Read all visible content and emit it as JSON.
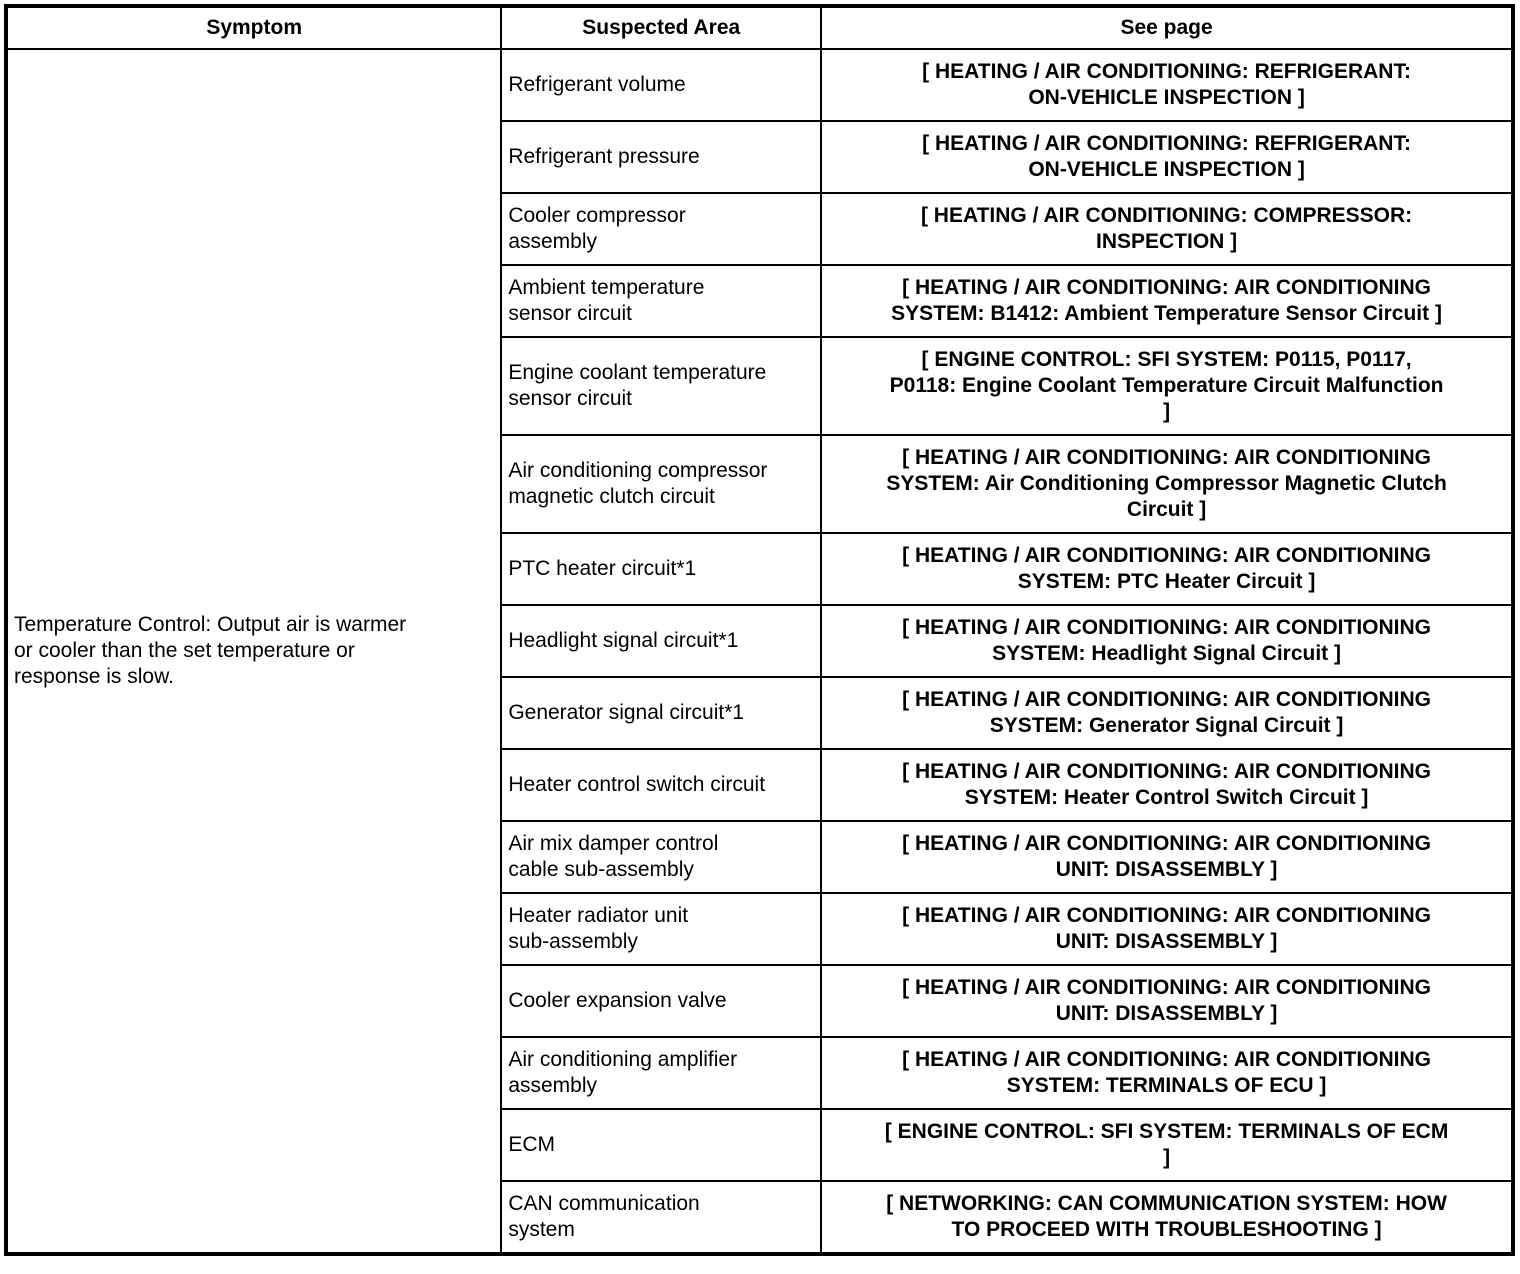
{
  "colors": {
    "text": "#000000",
    "background": "#ffffff",
    "border": "#000000"
  },
  "table": {
    "headers": {
      "symptom": "Symptom",
      "suspected_area": "Suspected Area",
      "see_page": "See page"
    },
    "symptom": "Temperature Control: Output air is warmer\nor cooler than the set temperature or\nresponse is slow.",
    "rows": [
      {
        "area": "Refrigerant volume",
        "page": "[ HEATING / AIR CONDITIONING: REFRIGERANT:\nON-VEHICLE INSPECTION ]"
      },
      {
        "area": "Refrigerant pressure",
        "page": "[ HEATING / AIR CONDITIONING: REFRIGERANT:\nON-VEHICLE INSPECTION ]"
      },
      {
        "area": "Cooler compressor\nassembly",
        "page": "[ HEATING / AIR CONDITIONING: COMPRESSOR:\nINSPECTION ]"
      },
      {
        "area": "Ambient temperature\nsensor circuit",
        "page": "[ HEATING / AIR CONDITIONING: AIR CONDITIONING\nSYSTEM: B1412: Ambient Temperature Sensor Circuit ]"
      },
      {
        "area": "Engine coolant temperature\nsensor circuit",
        "page": "[ ENGINE CONTROL: SFI SYSTEM: P0115, P0117,\nP0118: Engine Coolant Temperature Circuit Malfunction\n]"
      },
      {
        "area": "Air conditioning compressor\nmagnetic clutch circuit",
        "page": "[ HEATING / AIR CONDITIONING: AIR CONDITIONING\nSYSTEM: Air Conditioning Compressor Magnetic Clutch\nCircuit ]"
      },
      {
        "area": "PTC heater circuit*1",
        "page": "[ HEATING / AIR CONDITIONING: AIR CONDITIONING\nSYSTEM: PTC Heater Circuit ]"
      },
      {
        "area": "Headlight signal circuit*1",
        "page": "[ HEATING / AIR CONDITIONING: AIR CONDITIONING\nSYSTEM: Headlight Signal Circuit ]"
      },
      {
        "area": "Generator signal circuit*1",
        "page": "[ HEATING / AIR CONDITIONING: AIR CONDITIONING\nSYSTEM: Generator Signal Circuit ]"
      },
      {
        "area": "Heater control switch circuit",
        "page": "[ HEATING / AIR CONDITIONING: AIR CONDITIONING\nSYSTEM: Heater Control Switch Circuit ]"
      },
      {
        "area": "Air mix damper control\ncable sub-assembly",
        "page": "[ HEATING / AIR CONDITIONING: AIR CONDITIONING\nUNIT: DISASSEMBLY ]"
      },
      {
        "area": "Heater radiator unit\nsub-assembly",
        "page": "[ HEATING / AIR CONDITIONING: AIR CONDITIONING\nUNIT: DISASSEMBLY ]"
      },
      {
        "area": "Cooler expansion valve",
        "page": "[ HEATING / AIR CONDITIONING: AIR CONDITIONING\nUNIT: DISASSEMBLY ]"
      },
      {
        "area": "Air conditioning amplifier\nassembly",
        "page": "[ HEATING / AIR CONDITIONING: AIR CONDITIONING\nSYSTEM: TERMINALS OF ECU ]"
      },
      {
        "area": "ECM",
        "page": "[ ENGINE CONTROL: SFI SYSTEM: TERMINALS OF ECM\n]"
      },
      {
        "area": "CAN communication\nsystem",
        "page": "[ NETWORKING: CAN COMMUNICATION SYSTEM: HOW\nTO PROCEED WITH TROUBLESHOOTING ]"
      }
    ]
  }
}
